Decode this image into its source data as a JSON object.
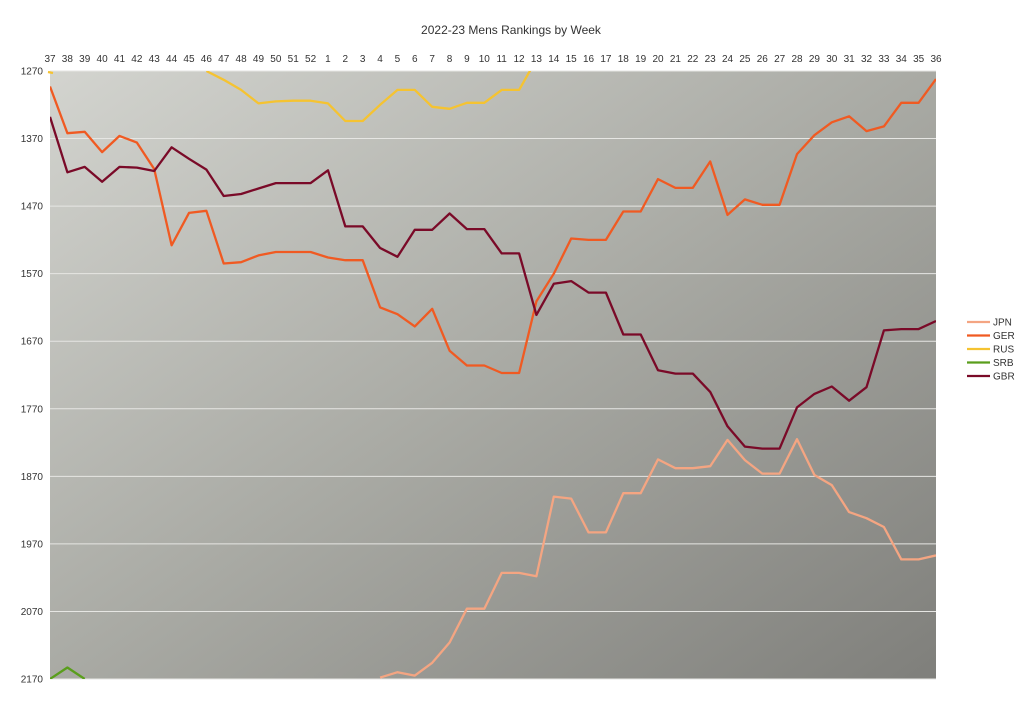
{
  "chart_data": {
    "type": "line",
    "title": "2022-23 Mens Rankings by Week",
    "xlabel": "",
    "ylabel": "",
    "y_axis_inverted": true,
    "ylim": [
      1270,
      2170
    ],
    "yticks": [
      1270,
      1370,
      1470,
      1570,
      1670,
      1770,
      1870,
      1970,
      2070,
      2170
    ],
    "x_axis_position": "top",
    "grid": "horizontal",
    "legend_position": "right",
    "background": "gradient light gray to dark gray",
    "categories": [
      "37",
      "38",
      "39",
      "40",
      "41",
      "42",
      "43",
      "44",
      "45",
      "46",
      "47",
      "48",
      "49",
      "50",
      "51",
      "52",
      "1",
      "2",
      "3",
      "4",
      "5",
      "6",
      "7",
      "8",
      "9",
      "10",
      "11",
      "12",
      "13",
      "14",
      "15",
      "16",
      "17",
      "18",
      "19",
      "20",
      "21",
      "22",
      "23",
      "24",
      "25",
      "26",
      "27",
      "28",
      "29",
      "30",
      "31",
      "32",
      "33",
      "34",
      "35",
      "36"
    ],
    "series": [
      {
        "name": "JPN",
        "color": "#f4a582",
        "values": [
          null,
          null,
          null,
          null,
          null,
          null,
          null,
          null,
          null,
          null,
          null,
          null,
          null,
          null,
          null,
          null,
          null,
          null,
          null,
          2168,
          2160,
          2165,
          2146,
          2116,
          2066,
          2066,
          2013,
          2013,
          2018,
          1900,
          1903,
          1953,
          1953,
          1895,
          1895,
          1845,
          1858,
          1858,
          1855,
          1816,
          1846,
          1866,
          1866,
          1815,
          1868,
          1883,
          1923,
          1932,
          1945,
          1993,
          1993,
          1987
        ]
      },
      {
        "name": "GER",
        "color": "#f05a22",
        "values": [
          1293,
          1362,
          1360,
          1390,
          1366,
          1376,
          1415,
          1528,
          1480,
          1477,
          1555,
          1553,
          1543,
          1538,
          1538,
          1538,
          1546,
          1550,
          1550,
          1620,
          1630,
          1648,
          1622,
          1684,
          1706,
          1706,
          1717,
          1717,
          1611,
          1570,
          1518,
          1520,
          1520,
          1478,
          1478,
          1430,
          1443,
          1443,
          1404,
          1483,
          1460,
          1468,
          1468,
          1393,
          1365,
          1346,
          1337,
          1359,
          1352,
          1317,
          1317,
          1282
        ]
      },
      {
        "name": "RUS",
        "color": "#f5c331",
        "values": [
          1269,
          null,
          null,
          null,
          null,
          null,
          null,
          null,
          null,
          1270,
          1283,
          1298,
          1318,
          1315,
          1314,
          1314,
          1318,
          1344,
          1344,
          1320,
          1298,
          1298,
          1323,
          1326,
          1317,
          1317,
          1298,
          1298,
          1253,
          null,
          null,
          null,
          null,
          null,
          null,
          null,
          null,
          null,
          null,
          null,
          null,
          null,
          null,
          null,
          null,
          null,
          null,
          null,
          null,
          null,
          null,
          null
        ]
      },
      {
        "name": "SRB",
        "color": "#5a9e1c",
        "values": [
          2170,
          2153,
          2170,
          null,
          null,
          null,
          null,
          null,
          null,
          null,
          null,
          null,
          null,
          null,
          null,
          null,
          null,
          null,
          null,
          null,
          null,
          null,
          null,
          null,
          null,
          null,
          null,
          null,
          null,
          null,
          null,
          null,
          null,
          null,
          null,
          null,
          null,
          null,
          null,
          null,
          null,
          null,
          null,
          null,
          null,
          null,
          null,
          null,
          null,
          null,
          null,
          null
        ]
      },
      {
        "name": "GBR",
        "color": "#7a0a28",
        "values": [
          1338,
          1420,
          1412,
          1434,
          1412,
          1413,
          1418,
          1383,
          1400,
          1416,
          1455,
          1452,
          1444,
          1436,
          1436,
          1436,
          1417,
          1500,
          1500,
          1532,
          1545,
          1505,
          1505,
          1481,
          1504,
          1504,
          1540,
          1540,
          1631,
          1585,
          1581,
          1598,
          1598,
          1660,
          1660,
          1713,
          1718,
          1718,
          1745,
          1796,
          1826,
          1829,
          1829,
          1768,
          1748,
          1737,
          1758,
          1738,
          1654,
          1652,
          1652,
          1640
        ]
      }
    ]
  }
}
